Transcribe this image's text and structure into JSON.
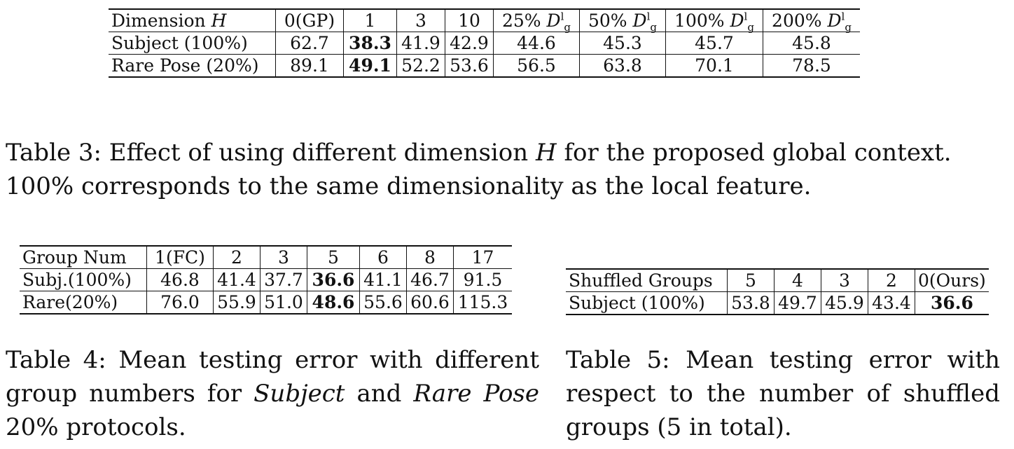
{
  "table3": {
    "header": [
      "Dimension H",
      "0(GP)",
      "1",
      "3",
      "10",
      "25% D_g^l",
      "50% D_g^l",
      "100% D_g^l",
      "200% D_g^l"
    ],
    "header_parts": {
      "dimension_label": "Dimension",
      "dimension_var": "H",
      "d_pcts": [
        "25%",
        "50%",
        "100%",
        "200%"
      ],
      "d_symbol": "D",
      "d_sup": "l",
      "d_sub": "g"
    },
    "rows": [
      {
        "label": "Subject (100%)",
        "values": [
          "62.7",
          "38.3",
          "41.9",
          "42.9",
          "44.6",
          "45.3",
          "45.7",
          "45.8"
        ],
        "bold_index": 1
      },
      {
        "label": "Rare Pose (20%)",
        "values": [
          "89.1",
          "49.1",
          "52.2",
          "53.6",
          "56.5",
          "63.8",
          "70.1",
          "78.5"
        ],
        "bold_index": 1
      }
    ],
    "caption": {
      "prefix": "Table 3: Effect of using different dimension ",
      "var": "H",
      "suffix": " for the proposed global context. 100% corresponds to the same dimensionality as the local feature."
    }
  },
  "table4": {
    "header": [
      "Group Num",
      "1(FC)",
      "2",
      "3",
      "5",
      "6",
      "8",
      "17"
    ],
    "rows": [
      {
        "label": "Subj.(100%)",
        "values": [
          "46.8",
          "41.4",
          "37.7",
          "36.6",
          "41.1",
          "46.7",
          "91.5"
        ],
        "bold_index": 3
      },
      {
        "label": "Rare(20%)",
        "values": [
          "76.0",
          "55.9",
          "51.0",
          "48.6",
          "55.6",
          "60.6",
          "115.3"
        ],
        "bold_index": 3
      }
    ],
    "caption": {
      "prefix": "Table 4: Mean testing error with different group numbers for ",
      "em1": "Subject",
      "mid": " and ",
      "em2": "Rare Pose",
      "suffix": " 20% protocols."
    }
  },
  "table5": {
    "header": [
      "Shuffled Groups",
      "5",
      "4",
      "3",
      "2",
      "0(Ours)"
    ],
    "rows": [
      {
        "label": "Subject (100%)",
        "values": [
          "53.8",
          "49.7",
          "45.9",
          "43.4",
          "36.6"
        ],
        "bold_index": 4
      }
    ],
    "caption": "Table 5: Mean testing error with respect to the number of shuffled groups (5 in total)."
  }
}
